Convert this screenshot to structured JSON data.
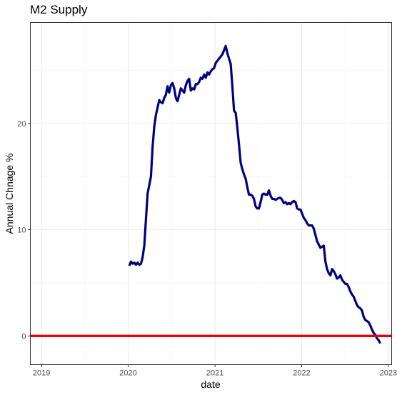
{
  "chart_data": {
    "type": "line",
    "title": "M2 Supply",
    "xlabel": "date",
    "ylabel": "Annual Chnage %",
    "x_ticks": [
      "2019",
      "2020",
      "2021",
      "2022",
      "2023"
    ],
    "y_ticks": [
      0,
      10,
      20
    ],
    "xlim": [
      "2018-11-15",
      "2023-01-15"
    ],
    "ylim": [
      -2.7,
      29.5
    ],
    "grid": true,
    "series": [
      {
        "color": "#00007f",
        "points": [
          [
            "2020-01-06",
            6.6
          ],
          [
            "2020-01-13",
            7.0
          ],
          [
            "2020-01-20",
            6.8
          ],
          [
            "2020-01-27",
            6.9
          ],
          [
            "2020-02-03",
            6.7
          ],
          [
            "2020-02-10",
            6.9
          ],
          [
            "2020-02-17",
            6.7
          ],
          [
            "2020-02-24",
            6.8
          ],
          [
            "2020-03-02",
            7.4
          ],
          [
            "2020-03-09",
            8.5
          ],
          [
            "2020-03-16",
            11.0
          ],
          [
            "2020-03-23",
            13.4
          ],
          [
            "2020-03-30",
            14.2
          ],
          [
            "2020-04-06",
            15.0
          ],
          [
            "2020-04-13",
            17.8
          ],
          [
            "2020-04-20",
            19.7
          ],
          [
            "2020-04-27",
            20.8
          ],
          [
            "2020-05-04",
            21.5
          ],
          [
            "2020-05-11",
            22.2
          ],
          [
            "2020-05-18",
            22.0
          ],
          [
            "2020-05-25",
            21.9
          ],
          [
            "2020-06-01",
            22.4
          ],
          [
            "2020-06-08",
            22.7
          ],
          [
            "2020-06-15",
            23.5
          ],
          [
            "2020-06-22",
            22.9
          ],
          [
            "2020-06-29",
            23.6
          ],
          [
            "2020-07-06",
            23.8
          ],
          [
            "2020-07-13",
            23.3
          ],
          [
            "2020-07-20",
            22.4
          ],
          [
            "2020-07-27",
            22.1
          ],
          [
            "2020-08-03",
            22.7
          ],
          [
            "2020-08-10",
            23.3
          ],
          [
            "2020-08-17",
            23.1
          ],
          [
            "2020-08-24",
            22.9
          ],
          [
            "2020-08-31",
            23.6
          ],
          [
            "2020-09-07",
            24.0
          ],
          [
            "2020-09-14",
            24.2
          ],
          [
            "2020-09-21",
            23.1
          ],
          [
            "2020-09-28",
            23.3
          ],
          [
            "2020-10-05",
            23.2
          ],
          [
            "2020-10-12",
            23.7
          ],
          [
            "2020-10-19",
            23.7
          ],
          [
            "2020-10-26",
            23.9
          ],
          [
            "2020-11-02",
            24.3
          ],
          [
            "2020-11-09",
            24.2
          ],
          [
            "2020-11-16",
            24.6
          ],
          [
            "2020-11-23",
            24.3
          ],
          [
            "2020-11-30",
            24.8
          ],
          [
            "2020-12-07",
            24.6
          ],
          [
            "2020-12-14",
            24.9
          ],
          [
            "2020-12-21",
            25.1
          ],
          [
            "2020-12-28",
            25.2
          ],
          [
            "2021-01-04",
            25.7
          ],
          [
            "2021-01-11",
            25.9
          ],
          [
            "2021-01-18",
            26.1
          ],
          [
            "2021-01-25",
            26.3
          ],
          [
            "2021-02-01",
            26.5
          ],
          [
            "2021-02-08",
            26.9
          ],
          [
            "2021-02-15",
            27.3
          ],
          [
            "2021-02-22",
            26.6
          ],
          [
            "2021-03-01",
            26.1
          ],
          [
            "2021-03-08",
            25.6
          ],
          [
            "2021-03-15",
            23.5
          ],
          [
            "2021-03-22",
            21.2
          ],
          [
            "2021-03-29",
            21.0
          ],
          [
            "2021-04-05",
            19.6
          ],
          [
            "2021-04-12",
            18.0
          ],
          [
            "2021-04-19",
            16.3
          ],
          [
            "2021-04-26",
            15.7
          ],
          [
            "2021-05-03",
            15.2
          ],
          [
            "2021-05-10",
            14.8
          ],
          [
            "2021-05-17",
            14.0
          ],
          [
            "2021-05-24",
            13.3
          ],
          [
            "2021-05-31",
            13.3
          ],
          [
            "2021-06-07",
            13.2
          ],
          [
            "2021-06-14",
            12.9
          ],
          [
            "2021-06-21",
            12.2
          ],
          [
            "2021-06-28",
            12.0
          ],
          [
            "2021-07-05",
            12.0
          ],
          [
            "2021-07-12",
            12.6
          ],
          [
            "2021-07-19",
            13.3
          ],
          [
            "2021-07-26",
            13.4
          ],
          [
            "2021-08-02",
            13.3
          ],
          [
            "2021-08-09",
            13.3
          ],
          [
            "2021-08-16",
            13.7
          ],
          [
            "2021-08-23",
            13.2
          ],
          [
            "2021-08-30",
            12.9
          ],
          [
            "2021-09-06",
            12.9
          ],
          [
            "2021-09-13",
            12.8
          ],
          [
            "2021-09-20",
            12.9
          ],
          [
            "2021-09-27",
            13.0
          ],
          [
            "2021-10-04",
            13.0
          ],
          [
            "2021-10-11",
            12.8
          ],
          [
            "2021-10-18",
            12.5
          ],
          [
            "2021-10-25",
            12.6
          ],
          [
            "2021-11-01",
            12.4
          ],
          [
            "2021-11-08",
            12.5
          ],
          [
            "2021-11-15",
            12.4
          ],
          [
            "2021-11-22",
            12.6
          ],
          [
            "2021-11-29",
            12.7
          ],
          [
            "2021-12-06",
            12.6
          ],
          [
            "2021-12-13",
            12.0
          ],
          [
            "2021-12-20",
            11.9
          ],
          [
            "2021-12-27",
            11.9
          ],
          [
            "2022-01-03",
            11.5
          ],
          [
            "2022-01-10",
            11.1
          ],
          [
            "2022-01-17",
            10.9
          ],
          [
            "2022-01-24",
            10.6
          ],
          [
            "2022-01-31",
            10.4
          ],
          [
            "2022-02-07",
            10.4
          ],
          [
            "2022-02-14",
            10.4
          ],
          [
            "2022-02-21",
            10.1
          ],
          [
            "2022-02-28",
            9.5
          ],
          [
            "2022-03-07",
            8.9
          ],
          [
            "2022-03-14",
            8.6
          ],
          [
            "2022-03-21",
            8.3
          ],
          [
            "2022-03-28",
            8.4
          ],
          [
            "2022-04-04",
            8.5
          ],
          [
            "2022-04-11",
            7.0
          ],
          [
            "2022-04-18",
            6.3
          ],
          [
            "2022-04-25",
            5.9
          ],
          [
            "2022-05-02",
            5.7
          ],
          [
            "2022-05-09",
            6.3
          ],
          [
            "2022-05-16",
            6.1
          ],
          [
            "2022-05-23",
            5.8
          ],
          [
            "2022-05-30",
            5.4
          ],
          [
            "2022-06-06",
            5.5
          ],
          [
            "2022-06-13",
            5.7
          ],
          [
            "2022-06-20",
            5.3
          ],
          [
            "2022-06-27",
            5.1
          ],
          [
            "2022-07-04",
            4.9
          ],
          [
            "2022-07-11",
            4.9
          ],
          [
            "2022-07-18",
            4.6
          ],
          [
            "2022-07-25",
            4.2
          ],
          [
            "2022-08-01",
            3.9
          ],
          [
            "2022-08-08",
            3.7
          ],
          [
            "2022-08-15",
            3.3
          ],
          [
            "2022-08-22",
            2.9
          ],
          [
            "2022-08-29",
            2.7
          ],
          [
            "2022-09-05",
            2.6
          ],
          [
            "2022-09-12",
            2.4
          ],
          [
            "2022-09-19",
            1.8
          ],
          [
            "2022-09-26",
            1.5
          ],
          [
            "2022-10-03",
            1.4
          ],
          [
            "2022-10-10",
            1.3
          ],
          [
            "2022-10-17",
            1.0
          ],
          [
            "2022-10-24",
            0.6
          ],
          [
            "2022-10-31",
            0.3
          ],
          [
            "2022-11-07",
            0.1
          ],
          [
            "2022-11-14",
            -0.2
          ],
          [
            "2022-11-21",
            -0.4
          ],
          [
            "2022-11-28",
            -0.7
          ]
        ]
      }
    ],
    "hline": {
      "y": 0,
      "color": "#ee0000"
    }
  }
}
